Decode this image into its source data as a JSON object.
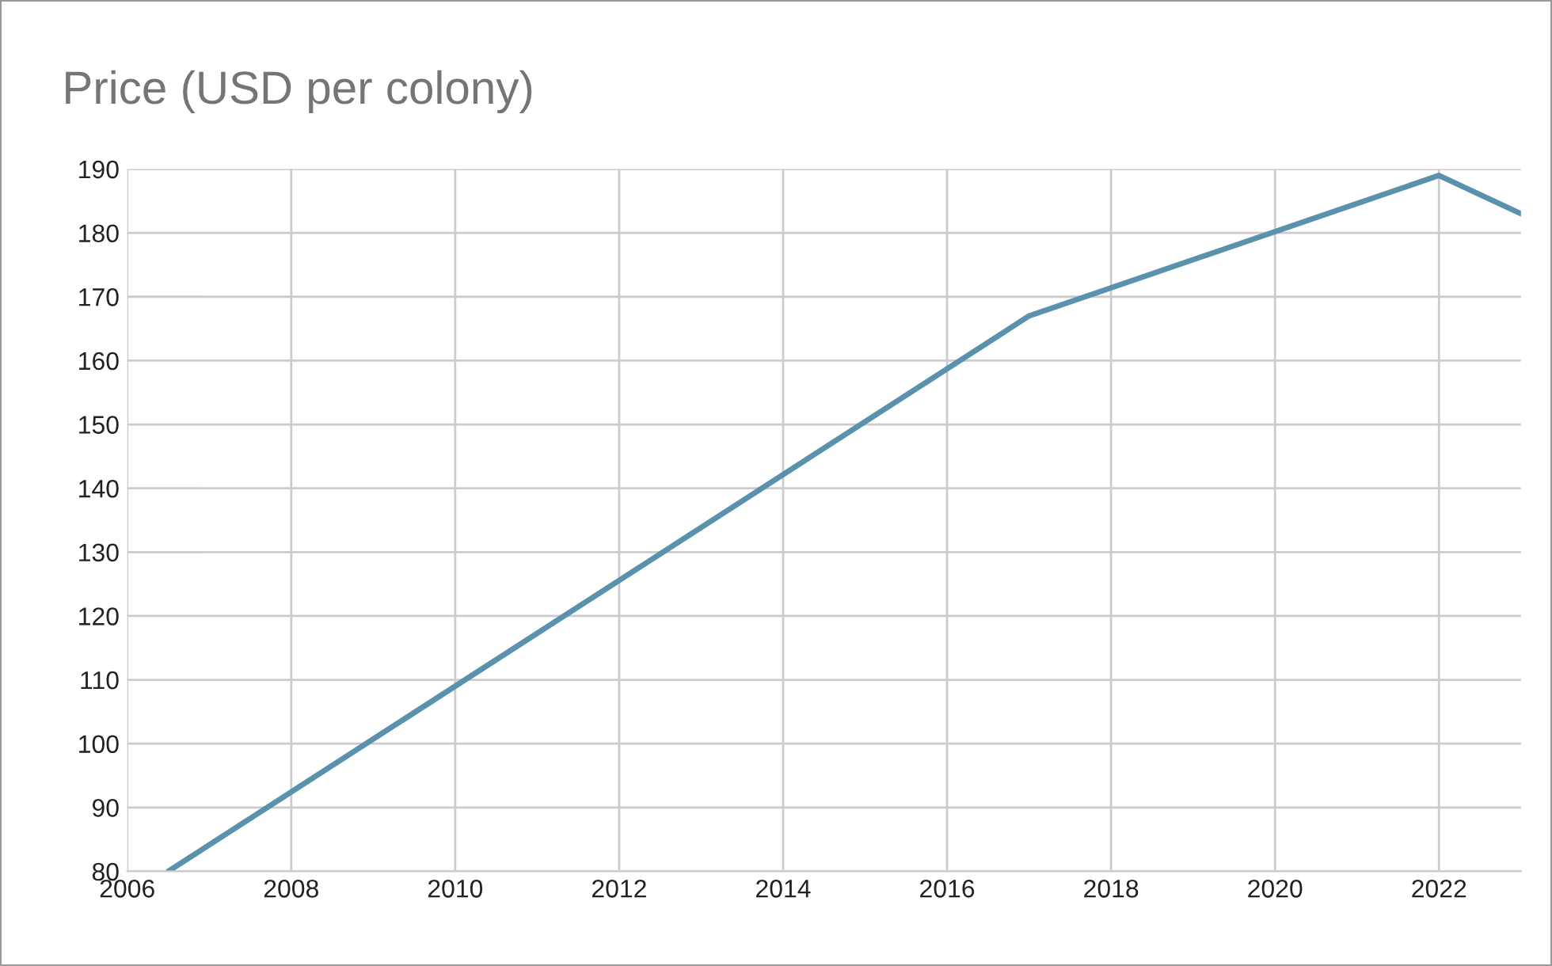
{
  "chart_data": {
    "type": "line",
    "title": "Price (USD per colony)",
    "x": [
      2006.5,
      2017,
      2022,
      2023
    ],
    "series": [
      {
        "color": "#5a92ae",
        "values": [
          80,
          167,
          189,
          183
        ]
      }
    ],
    "xlim": [
      2006,
      2023
    ],
    "xticks": [
      2006,
      2008,
      2010,
      2012,
      2014,
      2016,
      2018,
      2020,
      2022
    ],
    "ylim": [
      80,
      190
    ],
    "yticks": [
      80,
      90,
      100,
      110,
      120,
      130,
      140,
      150,
      160,
      170,
      180,
      190
    ],
    "grid": true,
    "legend": false
  }
}
